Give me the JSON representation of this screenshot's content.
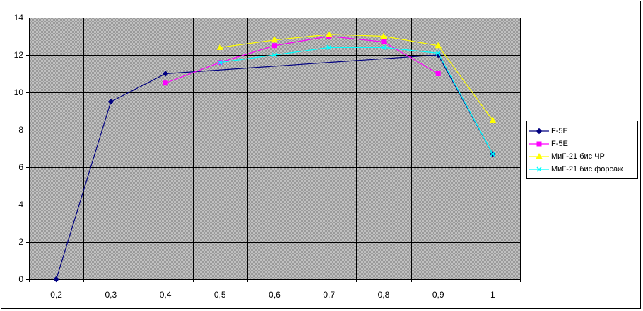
{
  "chart_data": {
    "type": "line",
    "x": [
      "0,2",
      "0,3",
      "0,4",
      "0,5",
      "0,6",
      "0,7",
      "0,8",
      "0,9",
      "1"
    ],
    "ylim": [
      0,
      14
    ],
    "ytick_labels": [
      "0",
      "2",
      "4",
      "6",
      "8",
      "10",
      "12",
      "14"
    ],
    "grid": true,
    "legend_position": "right",
    "series": [
      {
        "name": "F-5E",
        "color": "#000080",
        "marker": "diamond",
        "values": [
          0,
          9.5,
          11.0,
          null,
          null,
          null,
          null,
          12.0,
          6.7
        ]
      },
      {
        "name": "F-5E",
        "color": "#FF00FF",
        "marker": "square",
        "values": [
          null,
          null,
          10.5,
          11.6,
          12.5,
          13.0,
          12.7,
          11.0,
          null
        ]
      },
      {
        "name": "МиГ-21 бис ЧР",
        "color": "#FFFF00",
        "marker": "triangle",
        "values": [
          null,
          null,
          null,
          12.4,
          12.8,
          13.1,
          13.0,
          12.5,
          8.5
        ]
      },
      {
        "name": "МиГ-21 бис форсаж",
        "color": "#00FFFF",
        "marker": "x",
        "values": [
          null,
          null,
          null,
          11.6,
          12.0,
          12.4,
          12.4,
          12.1,
          6.7
        ]
      }
    ]
  }
}
